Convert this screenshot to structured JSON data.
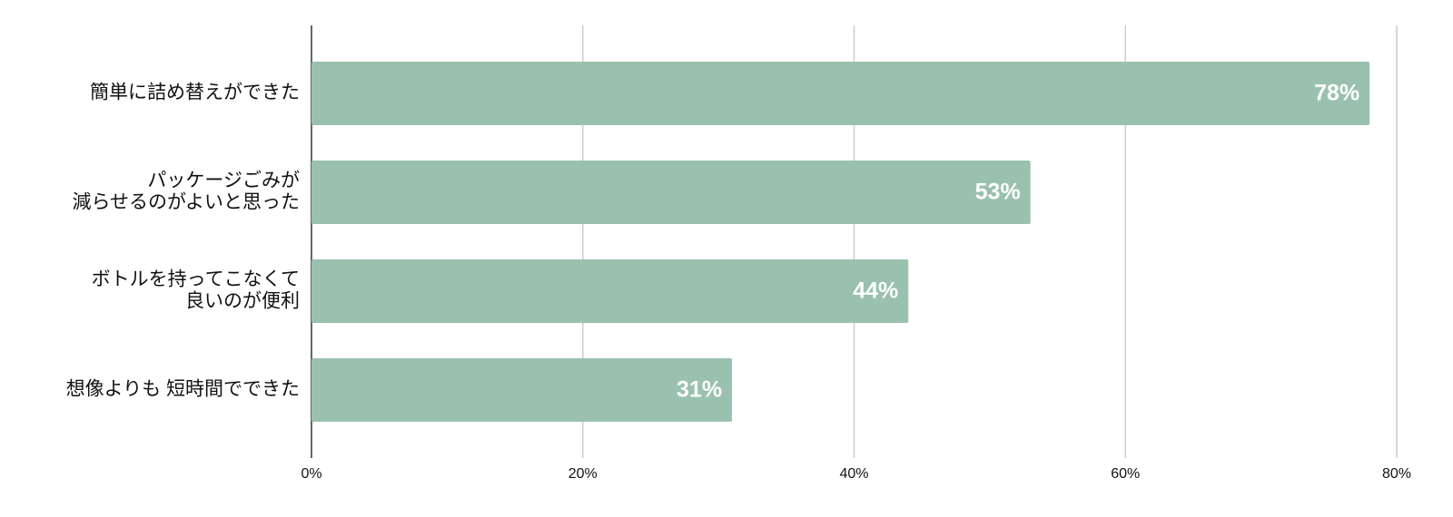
{
  "chart_data": {
    "type": "barh",
    "categories": [
      [
        "簡単に詰め替えができた"
      ],
      [
        "パッケージごみが",
        "減らせるのがよいと思った"
      ],
      [
        "ボトルを持ってこなくて",
        "良いのが便利"
      ],
      [
        "想像よりも 短時間でできた"
      ]
    ],
    "values": [
      78,
      53,
      44,
      31
    ],
    "value_labels": [
      "78%",
      "53%",
      "44%",
      "31%"
    ],
    "color": "#9ac1ae",
    "xlim": [
      0,
      80
    ],
    "xticks": [
      {
        "value": 0,
        "label": "0%"
      },
      {
        "value": 20,
        "label": "20%"
      },
      {
        "value": 40,
        "label": "40%"
      },
      {
        "value": 60,
        "label": "60%"
      },
      {
        "value": 80,
        "label": "80%"
      }
    ],
    "grid": true
  }
}
